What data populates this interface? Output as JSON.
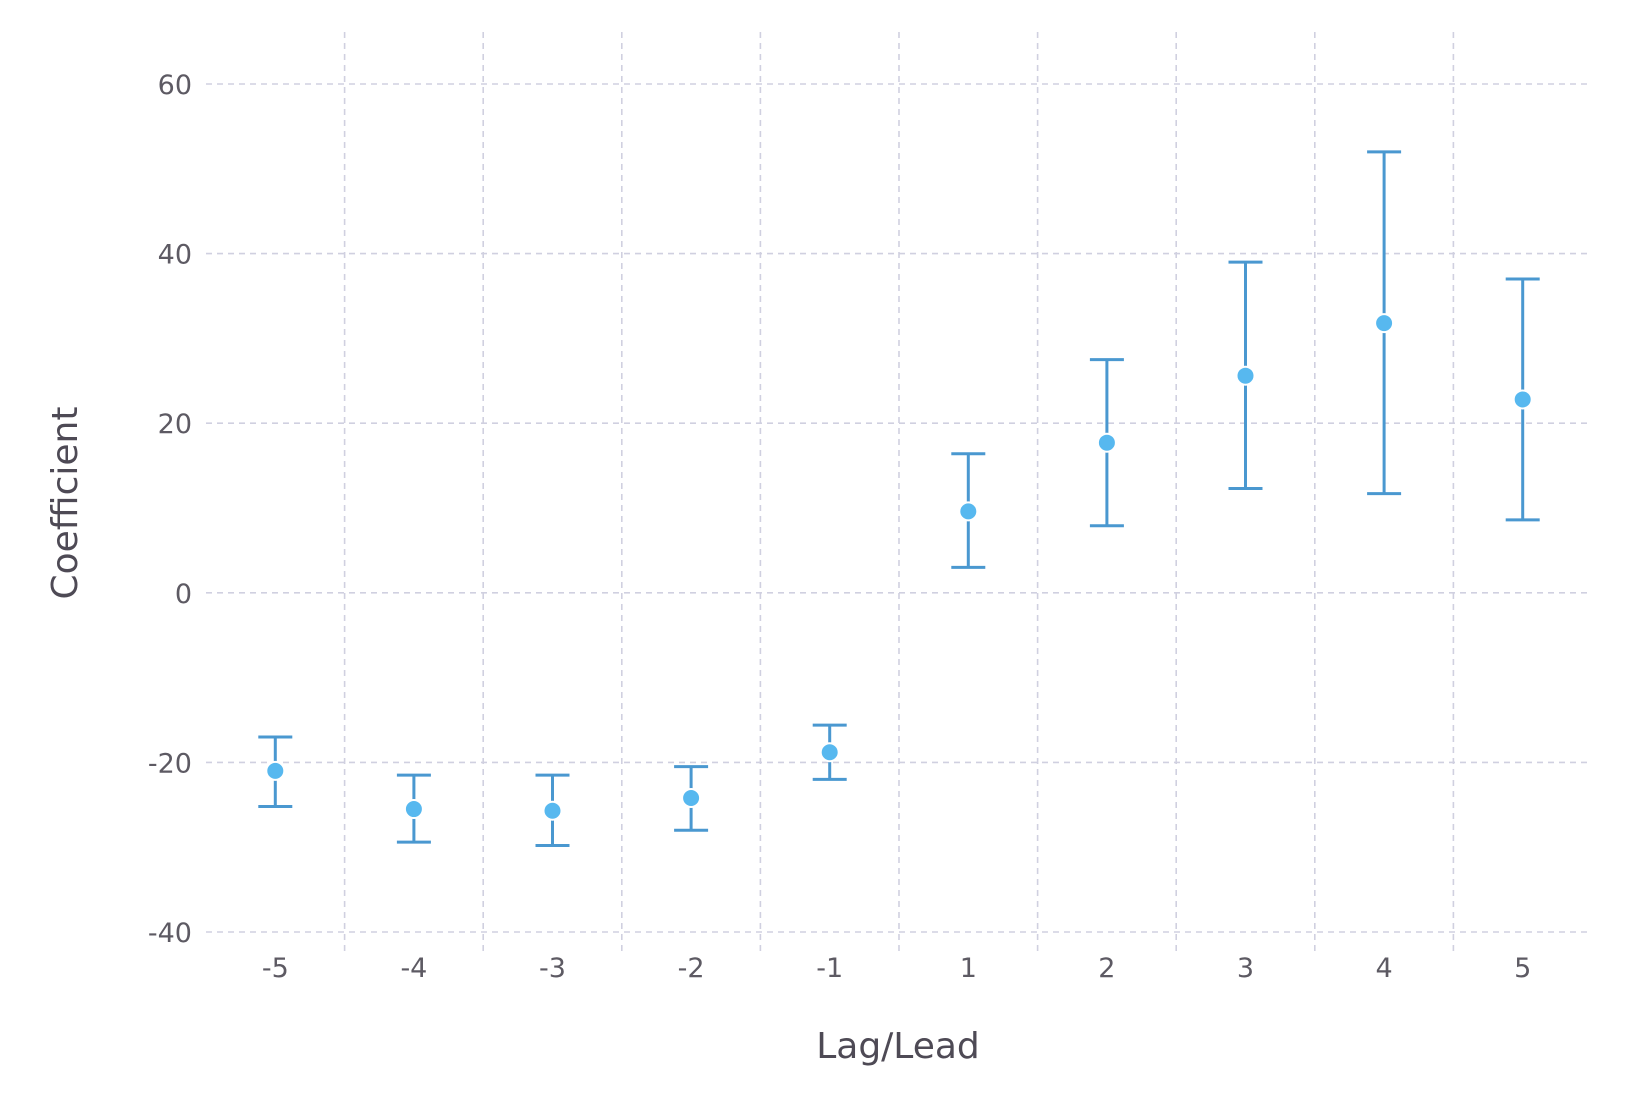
{
  "chart_data": {
    "type": "scatter",
    "xlabel": "Lag/Lead",
    "ylabel": "Coefficient",
    "categories": [
      "-5",
      "-4",
      "-3",
      "-2",
      "-1",
      "1",
      "2",
      "3",
      "4",
      "5"
    ],
    "estimates": [
      -21.0,
      -25.5,
      -25.7,
      -24.2,
      -18.8,
      9.6,
      17.7,
      25.6,
      31.8,
      22.8
    ],
    "ci_lower": [
      -25.2,
      -29.4,
      -29.8,
      -28.0,
      -22.0,
      3.0,
      7.9,
      12.3,
      11.7,
      8.6
    ],
    "ci_upper": [
      -17.0,
      -21.5,
      -21.5,
      -20.5,
      -15.6,
      16.4,
      27.5,
      39.0,
      52.0,
      37.0
    ],
    "yticks": [
      -40,
      -20,
      0,
      20,
      40,
      60
    ],
    "ylim": [
      -40,
      60
    ],
    "grid": true,
    "colors": {
      "errorbar": "#4a98d0",
      "point": "#57b8ef",
      "grid": "#d0d0e0"
    }
  }
}
